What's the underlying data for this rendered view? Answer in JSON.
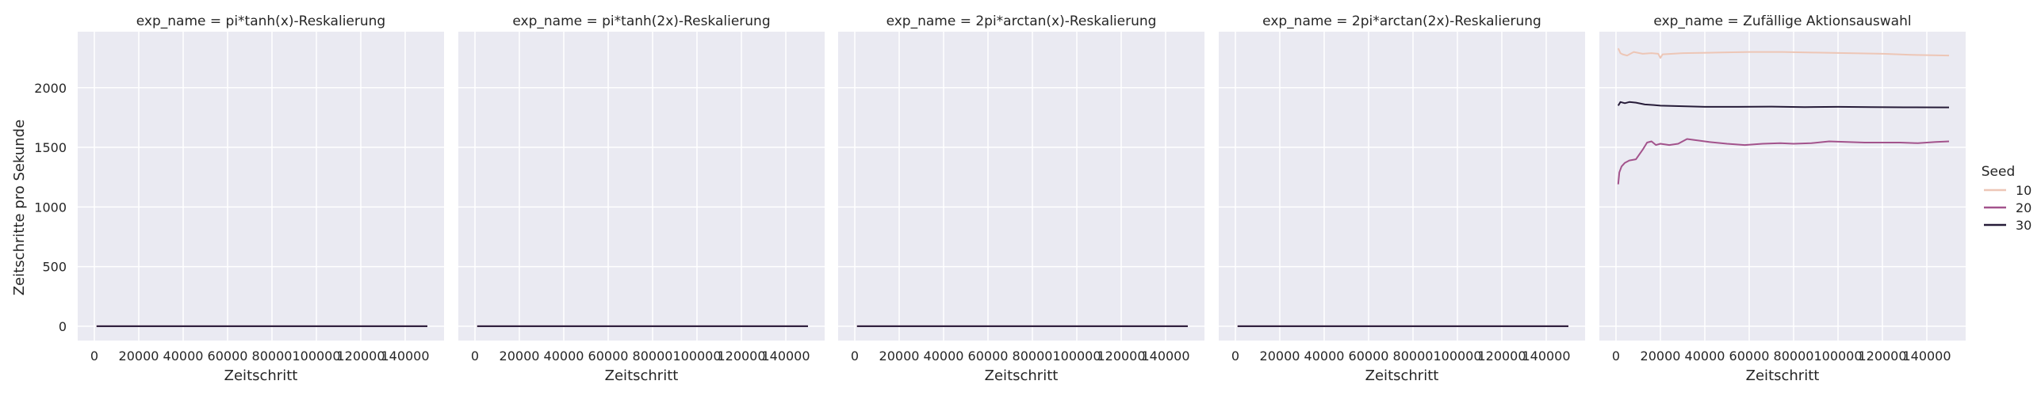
{
  "chart_data": {
    "type": "line",
    "ylabel": "Zeitschritte pro Sekunde",
    "xlabel": "Zeitschritt",
    "xlim": [
      -7500,
      157500
    ],
    "ylim": [
      -120,
      2470
    ],
    "xticks": [
      0,
      20000,
      40000,
      60000,
      80000,
      100000,
      120000,
      140000
    ],
    "yticks": [
      0,
      500,
      1000,
      1500,
      2000
    ],
    "grid": true,
    "legend": {
      "title": "Seed",
      "position": "right",
      "entries": [
        {
          "label": "10",
          "color": "#edc6b6"
        },
        {
          "label": "20",
          "color": "#a3538c"
        },
        {
          "label": "30",
          "color": "#261b38"
        }
      ]
    },
    "panels": [
      {
        "title": "exp_name = pi*tanh(x)-Reskalierung",
        "series": [
          {
            "seed": "10",
            "x": [
              1000,
              150000
            ],
            "y": [
              0,
              0
            ]
          },
          {
            "seed": "20",
            "x": [
              1000,
              150000
            ],
            "y": [
              0,
              0
            ]
          },
          {
            "seed": "30",
            "x": [
              1000,
              150000
            ],
            "y": [
              0,
              0
            ]
          }
        ]
      },
      {
        "title": "exp_name = pi*tanh(2x)-Reskalierung",
        "series": [
          {
            "seed": "10",
            "x": [
              1000,
              150000
            ],
            "y": [
              0,
              0
            ]
          },
          {
            "seed": "20",
            "x": [
              1000,
              150000
            ],
            "y": [
              0,
              0
            ]
          },
          {
            "seed": "30",
            "x": [
              1000,
              150000
            ],
            "y": [
              0,
              0
            ]
          }
        ]
      },
      {
        "title": "exp_name = 2pi*arctan(x)-Reskalierung",
        "series": [
          {
            "seed": "10",
            "x": [
              1000,
              150000
            ],
            "y": [
              0,
              0
            ]
          },
          {
            "seed": "20",
            "x": [
              1000,
              150000
            ],
            "y": [
              0,
              0
            ]
          },
          {
            "seed": "30",
            "x": [
              1000,
              150000
            ],
            "y": [
              0,
              0
            ]
          }
        ]
      },
      {
        "title": "exp_name = 2pi*arctan(2x)-Reskalierung",
        "series": [
          {
            "seed": "10",
            "x": [
              1000,
              150000
            ],
            "y": [
              0,
              0
            ]
          },
          {
            "seed": "20",
            "x": [
              1000,
              150000
            ],
            "y": [
              0,
              0
            ]
          },
          {
            "seed": "30",
            "x": [
              1000,
              150000
            ],
            "y": [
              0,
              0
            ]
          }
        ]
      },
      {
        "title": "exp_name = Zufällige Aktionsauswahl",
        "series": [
          {
            "seed": "10",
            "x": [
              1000,
              2000,
              3000,
              5000,
              8000,
              12000,
              16000,
              19000,
              20000,
              21000,
              30000,
              45000,
              60000,
              75000,
              90000,
              105000,
              120000,
              135000,
              150000
            ],
            "y": [
              2330,
              2290,
              2280,
              2270,
              2300,
              2285,
              2290,
              2285,
              2250,
              2280,
              2290,
              2295,
              2300,
              2300,
              2295,
              2290,
              2285,
              2275,
              2270
            ]
          },
          {
            "seed": "20",
            "x": [
              1000,
              1500,
              2500,
              4000,
              6000,
              9000,
              12000,
              14000,
              16000,
              18000,
              20000,
              24000,
              28000,
              32000,
              36000,
              42000,
              50000,
              58000,
              66000,
              74000,
              80000,
              88000,
              96000,
              104000,
              112000,
              120000,
              128000,
              136000,
              144000,
              150000
            ],
            "y": [
              1190,
              1290,
              1340,
              1370,
              1390,
              1400,
              1480,
              1540,
              1550,
              1520,
              1530,
              1520,
              1530,
              1570,
              1560,
              1545,
              1530,
              1520,
              1530,
              1535,
              1530,
              1535,
              1550,
              1545,
              1540,
              1540,
              1540,
              1535,
              1545,
              1550
            ]
          },
          {
            "seed": "30",
            "x": [
              1000,
              2000,
              4000,
              6000,
              9000,
              13000,
              17000,
              20000,
              30000,
              40000,
              55000,
              70000,
              85000,
              100000,
              115000,
              130000,
              150000
            ],
            "y": [
              1850,
              1880,
              1870,
              1880,
              1875,
              1860,
              1855,
              1850,
              1845,
              1840,
              1840,
              1842,
              1838,
              1840,
              1838,
              1836,
              1835
            ]
          }
        ]
      }
    ]
  }
}
